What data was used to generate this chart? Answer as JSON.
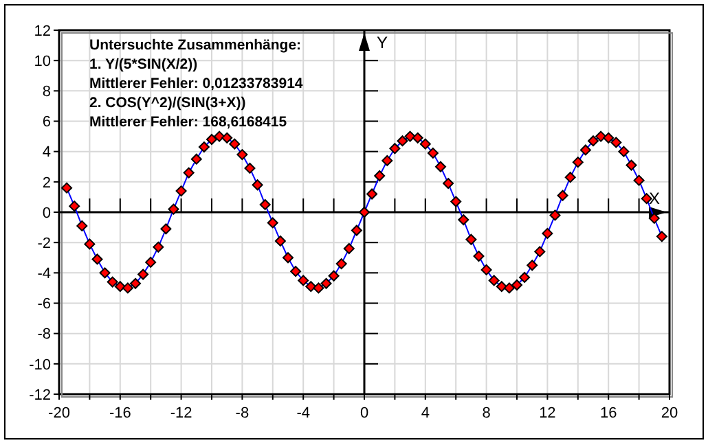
{
  "chart_data": {
    "type": "line",
    "xlabel": "X",
    "ylabel": "Y",
    "annotations": [
      "Untersuchte Zusammenhänge:",
      "1. Y/(5*SIN(X/2))",
      "Mittlerer Fehler: 0,01233783914",
      "2. COS(Y^2)/(SIN(3+X))",
      "Mittlerer Fehler: 168,6168415"
    ],
    "x": [
      -19.5,
      -19,
      -18.5,
      -18,
      -17.5,
      -17,
      -16.5,
      -16,
      -15.5,
      -15,
      -14.5,
      -14,
      -13.5,
      -13,
      -12.5,
      -12,
      -11.5,
      -11,
      -10.5,
      -10,
      -9.5,
      -9,
      -8.5,
      -8,
      -7.5,
      -7,
      -6.5,
      -6,
      -5.5,
      -5,
      -4.5,
      -4,
      -3.5,
      -3,
      -2.5,
      -2,
      -1.5,
      -1,
      -0.5,
      0,
      0.5,
      1,
      1.5,
      2,
      2.5,
      3,
      3.5,
      4,
      4.5,
      5,
      5.5,
      6,
      6.5,
      7,
      7.5,
      8,
      8.5,
      9,
      9.5,
      10,
      10.5,
      11,
      11.5,
      12,
      12.5,
      13,
      13.5,
      14,
      14.5,
      15,
      15.5,
      16,
      16.5,
      17,
      17.5,
      18,
      18.5,
      19,
      19.5
    ],
    "series": [
      {
        "color": "#0000ff",
        "values": [
          1.6,
          0.4,
          -0.9,
          -2.1,
          -3.1,
          -4.0,
          -4.6,
          -4.9,
          -5.0,
          -4.7,
          -4.1,
          -3.3,
          -2.3,
          -1.1,
          0.2,
          1.4,
          2.6,
          3.5,
          4.3,
          4.8,
          5.0,
          4.9,
          4.5,
          3.8,
          2.9,
          1.8,
          0.5,
          -0.7,
          -1.9,
          -3.0,
          -3.9,
          -4.5,
          -4.9,
          -5.0,
          -4.7,
          -4.2,
          -3.4,
          -2.4,
          -1.2,
          0,
          1.2,
          2.4,
          3.4,
          4.2,
          4.7,
          5.0,
          4.9,
          4.5,
          3.9,
          3.0,
          1.9,
          0.7,
          -0.5,
          -1.8,
          -2.9,
          -3.8,
          -4.5,
          -4.9,
          -5.0,
          -4.8,
          -4.3,
          -3.5,
          -2.6,
          -1.4,
          -0.2,
          1.1,
          2.3,
          3.3,
          4.1,
          4.7,
          5.0,
          4.9,
          4.6,
          4.0,
          3.1,
          2.1,
          0.9,
          -0.4,
          -1.6
        ]
      },
      {
        "type": "scatter",
        "color": "#ff0000",
        "marker": "diamond",
        "values": [
          1.6,
          0.4,
          -0.9,
          -2.1,
          -3.1,
          -4.0,
          -4.6,
          -4.9,
          -5.0,
          -4.7,
          -4.1,
          -3.3,
          -2.3,
          -1.1,
          0.2,
          1.4,
          2.6,
          3.5,
          4.3,
          4.8,
          5.0,
          4.9,
          4.5,
          3.8,
          2.9,
          1.8,
          0.5,
          -0.7,
          -1.9,
          -3.0,
          -3.9,
          -4.5,
          -4.9,
          -5.0,
          -4.7,
          -4.2,
          -3.4,
          -2.4,
          -1.2,
          0,
          1.2,
          2.4,
          3.4,
          4.2,
          4.7,
          5.0,
          4.9,
          4.5,
          3.9,
          3.0,
          1.9,
          0.7,
          -0.5,
          -1.8,
          -2.9,
          -3.8,
          -4.5,
          -4.9,
          -5.0,
          -4.8,
          -4.3,
          -3.5,
          -2.6,
          -1.4,
          -0.2,
          1.1,
          2.3,
          3.3,
          4.1,
          4.7,
          5.0,
          4.9,
          4.6,
          4.0,
          3.1,
          2.1,
          0.9,
          -0.4,
          -1.6
        ]
      }
    ],
    "xlim": [
      -20,
      20
    ],
    "ylim": [
      -12,
      12
    ],
    "xticks": [
      -20,
      {
        "value": -18,
        "label": null
      },
      -16,
      {
        "value": -14,
        "label": null
      },
      -12,
      {
        "value": -10,
        "label": null
      },
      -8,
      {
        "value": -6,
        "label": null
      },
      -4,
      {
        "value": -2,
        "label": null
      },
      0,
      {
        "value": 2,
        "label": null
      },
      4,
      {
        "value": 6,
        "label": null
      },
      8,
      {
        "value": 10,
        "label": null
      },
      12,
      {
        "value": 14,
        "label": null
      },
      16,
      {
        "value": 18,
        "label": null
      },
      20
    ],
    "yticks": [
      -12,
      -10,
      -8,
      -6,
      -4,
      -2,
      0,
      2,
      4,
      6,
      8,
      10,
      12
    ],
    "grid": true
  }
}
